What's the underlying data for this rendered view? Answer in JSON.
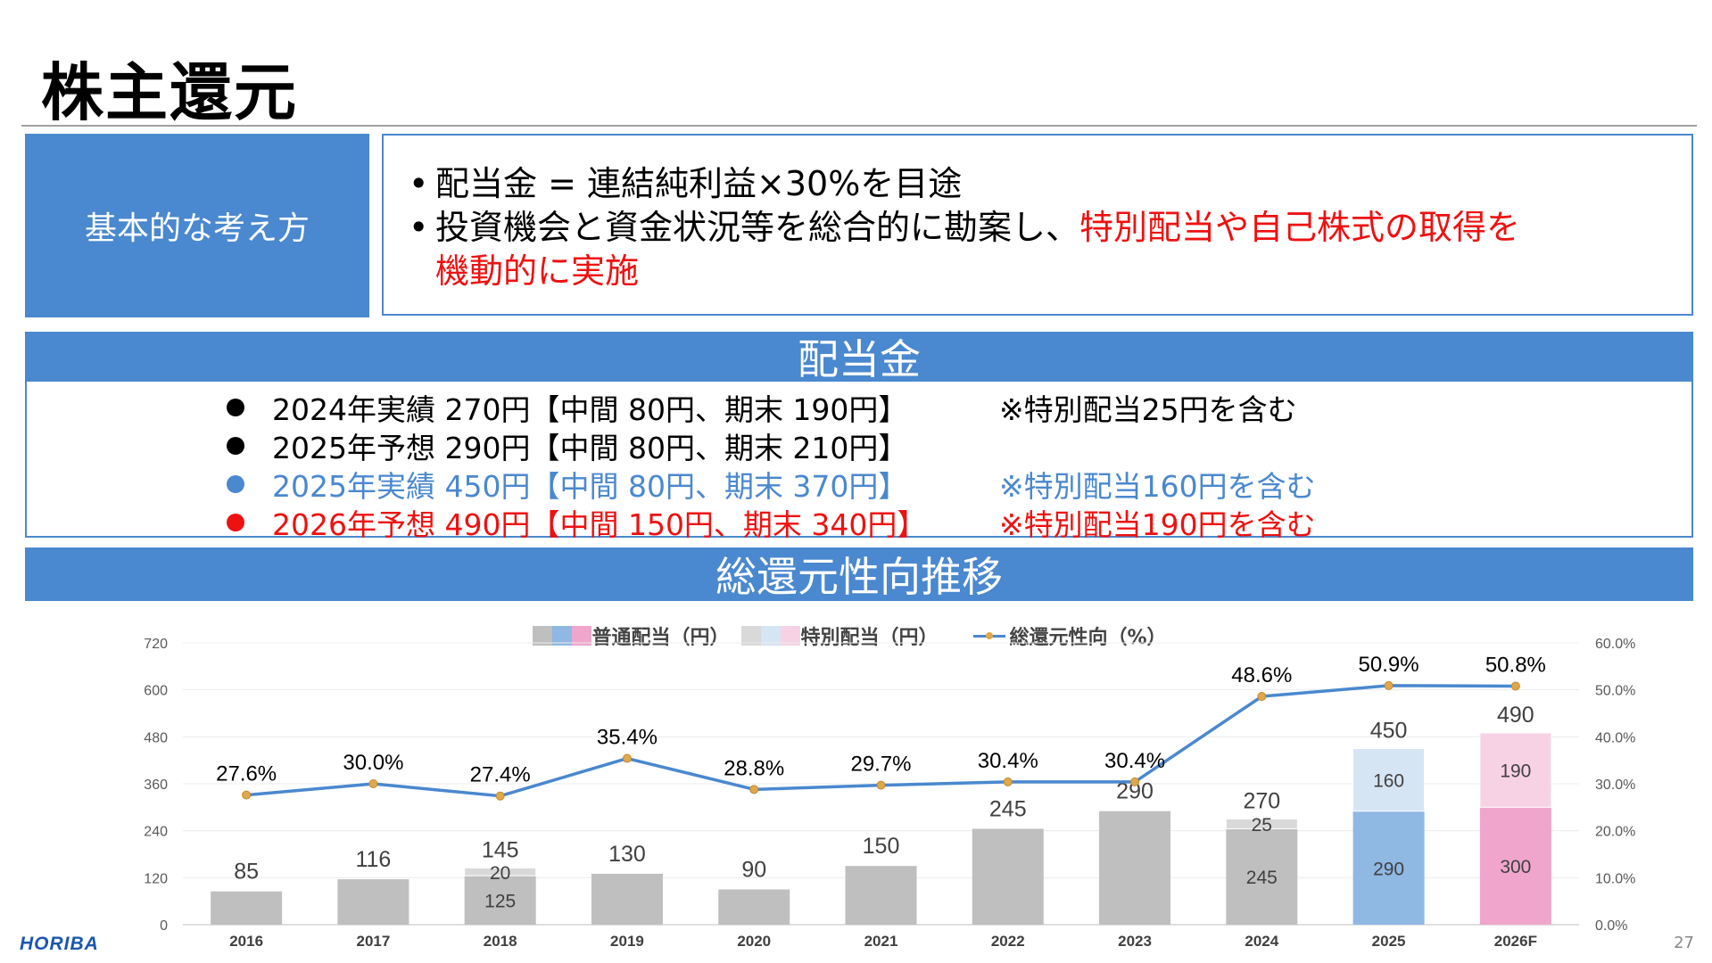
{
  "page": {
    "title": "株主還元",
    "page_number": "27",
    "logo_text": "HORIBA"
  },
  "policy": {
    "label": "基本的な考え方",
    "bullet": "•",
    "line1": "配当金 = 連結純利益×30%を目途",
    "line2_black": "投資機会と資金状況等を総合的に勘案し、",
    "line2_red": "特別配当や自己株式の取得を",
    "line3_red": "機動的に実施"
  },
  "dividend": {
    "banner": "配当金",
    "rows": [
      {
        "main": "2024年実績 270円【中間 80円、期末  190円】",
        "note": "※特別配当25円を含む",
        "color": "black"
      },
      {
        "main": "2025年予想 290円【中間 80円、期末  210円】",
        "note": "",
        "color": "black"
      },
      {
        "main": "2025年実績 450円【中間 80円、期末  370円】",
        "note": "※特別配当160円を含む",
        "color": "blue"
      },
      {
        "main": "2026年予想 490円【中間 150円、期末  340円】",
        "note": "※特別配当190円を含む",
        "color": "red"
      }
    ]
  },
  "trend": {
    "banner": "総還元性向推移"
  },
  "chart_data": {
    "type": "bar",
    "categories": [
      "2016",
      "2017",
      "2018",
      "2019",
      "2020",
      "2021",
      "2022",
      "2023",
      "2024",
      "2025",
      "2026F"
    ],
    "series": [
      {
        "name": "普通配当（円）",
        "values": [
          85,
          116,
          125,
          130,
          90,
          150,
          245,
          290,
          245,
          290,
          300
        ]
      },
      {
        "name": "特別配当（円）",
        "values": [
          0,
          0,
          20,
          0,
          0,
          0,
          0,
          0,
          25,
          160,
          190
        ]
      },
      {
        "name": "総還元性向（%）",
        "type": "line",
        "axis": "right",
        "values": [
          27.6,
          30.0,
          27.4,
          35.4,
          28.8,
          29.7,
          30.4,
          30.4,
          48.6,
          50.9,
          50.8
        ]
      }
    ],
    "totals": [
      85,
      116,
      145,
      130,
      90,
      150,
      245,
      290,
      270,
      450,
      490
    ],
    "stacked_labels": {
      "2018": [
        "125",
        "20",
        "145"
      ],
      "2024": [
        "245",
        "25",
        "270"
      ],
      "2025": [
        "290",
        "160",
        "450"
      ],
      "2026F": [
        "300",
        "190",
        "490"
      ]
    },
    "line_labels": [
      "27.6%",
      "30.0%",
      "27.4%",
      "35.4%",
      "28.8%",
      "29.7%",
      "30.4%",
      "30.4%",
      "48.6%",
      "50.9%",
      "50.8%"
    ],
    "y_left_ticks": [
      "0",
      "120",
      "240",
      "360",
      "480",
      "600",
      "720"
    ],
    "y_right_ticks": [
      "0.0%",
      "10.0%",
      "20.0%",
      "30.0%",
      "40.0%",
      "50.0%",
      "60.0%"
    ],
    "ylim_left": [
      0,
      720
    ],
    "ylim_right": [
      0,
      60
    ],
    "bar_colors": {
      "normal": "#bfbfbf",
      "special": "#d9d9d9",
      "normal_2025": "#8fb8e3",
      "special_2025": "#d6e5f4",
      "normal_2026": "#f0a6cc",
      "special_2026": "#f7d2e5"
    },
    "line_color": "#4a88cf",
    "marker_color": "#e0a84a",
    "legend_position": "top-center"
  }
}
